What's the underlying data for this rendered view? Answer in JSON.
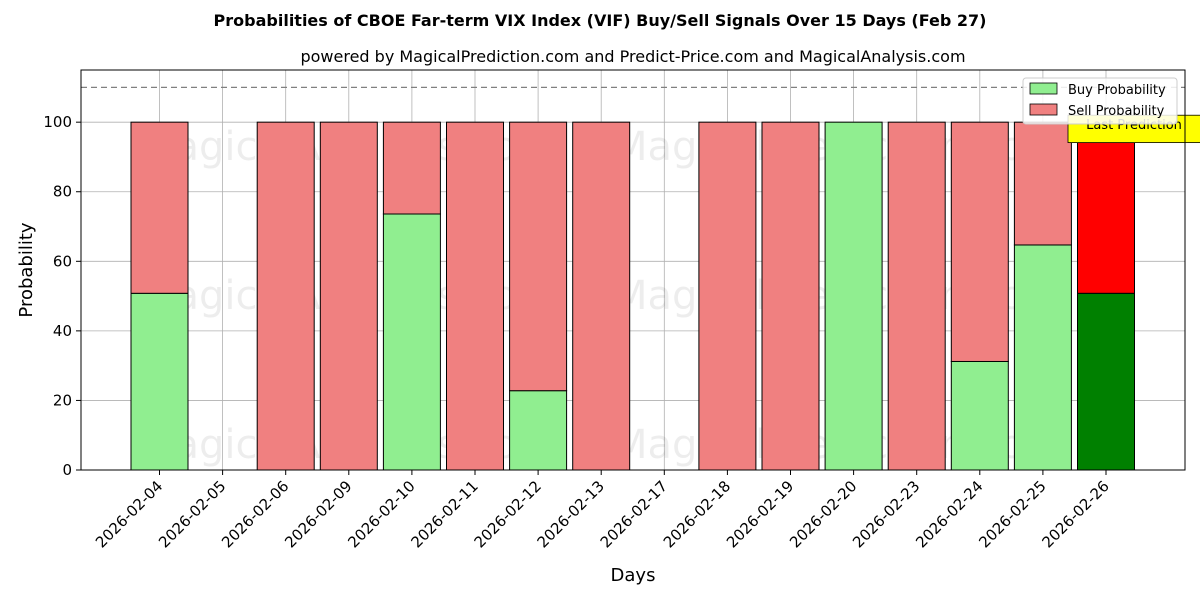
{
  "chart_data": {
    "type": "bar",
    "title": "Probabilities of CBOE Far-term VIX Index (VIF) Buy/Sell Signals Over 15 Days (Feb 27)",
    "subtitle": "powered by MagicalPrediction.com and Predict-Price.com and MagicalAnalysis.com",
    "xlabel": "Days",
    "ylabel": "Probability",
    "ylim": [
      0,
      115
    ],
    "yticks": [
      0,
      20,
      40,
      60,
      80,
      100
    ],
    "reference_line": 110,
    "grid": true,
    "stacked": true,
    "legend_position": "top-right",
    "categories": [
      "2026-02-04",
      "2026-02-05",
      "2026-02-06",
      "2026-02-09",
      "2026-02-10",
      "2026-02-11",
      "2026-02-12",
      "2026-02-13",
      "2026-02-17",
      "2026-02-18",
      "2026-02-19",
      "2026-02-20",
      "2026-02-23",
      "2026-02-24",
      "2026-02-25",
      "2026-02-26"
    ],
    "series": [
      {
        "name": "Buy Probability",
        "color": "#90ee90",
        "values": [
          50.8,
          null,
          0,
          0,
          73.6,
          0,
          22.8,
          0,
          null,
          0,
          0,
          100,
          0,
          31.2,
          64.7,
          50.8
        ]
      },
      {
        "name": "Sell Probability",
        "color": "#f08080",
        "values": [
          49.2,
          null,
          100,
          100,
          26.4,
          100,
          77.2,
          100,
          null,
          100,
          100,
          0,
          100,
          68.8,
          35.3,
          49.2
        ]
      }
    ],
    "highlight": {
      "index": 15,
      "buy_color": "#008000",
      "sell_color": "#ff0000",
      "label": "Last Prediction",
      "label_bg": "#ffff00"
    },
    "watermarks": [
      "MagicalAnalysis.com",
      "MagicalPrediction.com"
    ]
  }
}
